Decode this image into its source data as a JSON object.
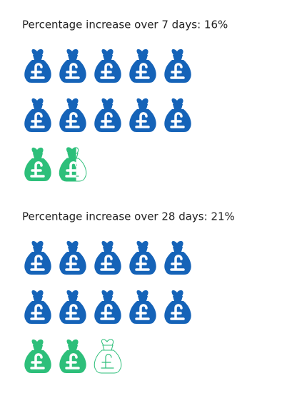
{
  "chart_data": [
    {
      "type": "pictograph",
      "title": "Percentage increase over 7 days: 16%",
      "icon_value": 10,
      "series": [
        {
          "name": null,
          "color": "#1563b8",
          "values": [
            100
          ]
        },
        {
          "name": null,
          "color": "#2dbf7a",
          "values": [
            16
          ]
        }
      ]
    },
    {
      "type": "pictograph",
      "title": "Percentage increase over 28 days: 21%",
      "icon_value": 10,
      "series": [
        {
          "name": null,
          "color": "#1563b8",
          "values": [
            100
          ]
        },
        {
          "name": null,
          "color": "#2dbf7a",
          "values": [
            21
          ]
        }
      ]
    }
  ]
}
